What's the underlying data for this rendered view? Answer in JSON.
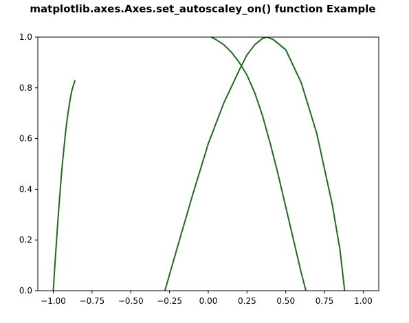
{
  "chart_data": {
    "type": "line",
    "title": "matplotlib.axes.Axes.set_autoscaley_on() function Example",
    "xlabel": "",
    "ylabel": "",
    "xlim": [
      -1.1,
      1.1
    ],
    "ylim": [
      0.0,
      1.0
    ],
    "grid": false,
    "legend": "none",
    "x_ticks": [
      -1.0,
      -0.75,
      -0.5,
      -0.25,
      0.0,
      0.25,
      0.5,
      0.75,
      1.0
    ],
    "x_tick_labels": [
      "−1.00",
      "−0.75",
      "−0.50",
      "−0.25",
      "0.00",
      "0.25",
      "0.50",
      "0.75",
      "1.00"
    ],
    "y_ticks": [
      0.0,
      0.2,
      0.4,
      0.6,
      0.8,
      1.0
    ],
    "y_tick_labels": [
      "0.0",
      "0.2",
      "0.4",
      "0.6",
      "0.8",
      "1.0"
    ],
    "colors": {
      "line": "#1e6b1e",
      "axes": "#000000",
      "background": "#ffffff"
    },
    "series": [
      {
        "x": [
          -1.0,
          -0.99,
          -0.98,
          -0.97,
          -0.96,
          -0.95,
          -0.94,
          -0.93,
          -0.92,
          -0.91,
          -0.9,
          -0.89,
          -0.88,
          -0.87,
          -0.86
        ],
        "y": [
          0.0,
          0.1,
          0.19,
          0.28,
          0.36,
          0.44,
          0.51,
          0.57,
          0.63,
          0.68,
          0.72,
          0.76,
          0.79,
          0.81,
          0.83
        ]
      },
      {
        "x": [
          0.02,
          0.05,
          0.1,
          0.15,
          0.2,
          0.25,
          0.3,
          0.35,
          0.4,
          0.45,
          0.5,
          0.55,
          0.6,
          0.63
        ],
        "y": [
          1.0,
          0.99,
          0.97,
          0.94,
          0.9,
          0.85,
          0.78,
          0.69,
          0.58,
          0.46,
          0.33,
          0.2,
          0.07,
          0.0
        ]
      },
      {
        "x": [
          -0.28,
          -0.2,
          -0.1,
          0.0,
          0.1,
          0.2,
          0.25,
          0.3,
          0.35,
          0.38,
          0.42,
          0.5,
          0.6,
          0.7,
          0.8,
          0.85,
          0.88
        ],
        "y": [
          0.0,
          0.17,
          0.38,
          0.58,
          0.74,
          0.87,
          0.93,
          0.97,
          0.995,
          1.0,
          0.99,
          0.95,
          0.82,
          0.62,
          0.34,
          0.16,
          0.0
        ]
      }
    ]
  }
}
